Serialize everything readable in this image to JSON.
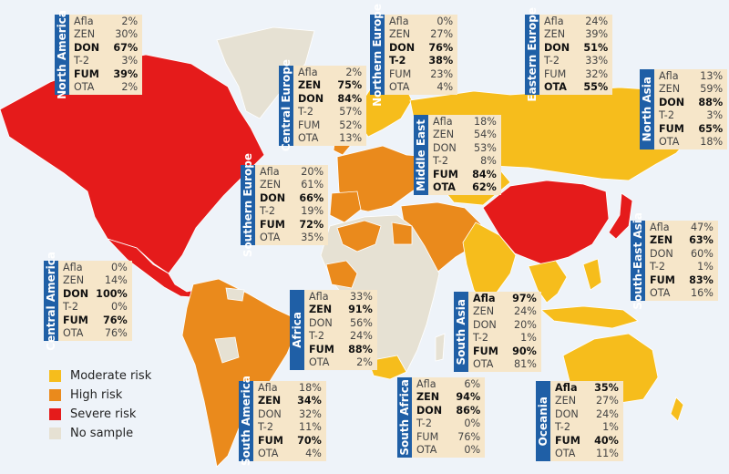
{
  "colors": {
    "moderate": "#f6bd1c",
    "high": "#ea8a1c",
    "severe": "#e51b1b",
    "no_sample": "#e6e1d3",
    "ocean": "#eef3f9",
    "box_bg": "#f6e6c9",
    "tag_bg": "#1f5fa6"
  },
  "legend": [
    {
      "label": "Moderate risk",
      "color_key": "moderate"
    },
    {
      "label": "High risk",
      "color_key": "high"
    },
    {
      "label": "Severe risk",
      "color_key": "severe"
    },
    {
      "label": "No sample",
      "color_key": "no_sample"
    }
  ],
  "regions": [
    {
      "name": "North America",
      "rows": [
        {
          "label": "Afla",
          "value": "2%",
          "bold": false
        },
        {
          "label": "ZEN",
          "value": "30%",
          "bold": false
        },
        {
          "label": "DON",
          "value": "67%",
          "bold": true
        },
        {
          "label": "T-2",
          "value": "3%",
          "bold": false
        },
        {
          "label": "FUM",
          "value": "39%",
          "bold": true
        },
        {
          "label": "OTA",
          "value": "2%",
          "bold": false
        }
      ]
    },
    {
      "name": "Northern Europe",
      "rows": [
        {
          "label": "Afla",
          "value": "0%",
          "bold": false
        },
        {
          "label": "ZEN",
          "value": "27%",
          "bold": false
        },
        {
          "label": "DON",
          "value": "76%",
          "bold": true
        },
        {
          "label": "T-2",
          "value": "38%",
          "bold": true
        },
        {
          "label": "FUM",
          "value": "23%",
          "bold": false
        },
        {
          "label": "OTA",
          "value": "4%",
          "bold": false
        }
      ]
    },
    {
      "name": "Eastern Europe",
      "rows": [
        {
          "label": "Afla",
          "value": "24%",
          "bold": false
        },
        {
          "label": "ZEN",
          "value": "39%",
          "bold": false
        },
        {
          "label": "DON",
          "value": "51%",
          "bold": true
        },
        {
          "label": "T-2",
          "value": "33%",
          "bold": false
        },
        {
          "label": "FUM",
          "value": "32%",
          "bold": false
        },
        {
          "label": "OTA",
          "value": "55%",
          "bold": true
        }
      ]
    },
    {
      "name": "Central Europe",
      "rows": [
        {
          "label": "Afla",
          "value": "2%",
          "bold": false
        },
        {
          "label": "ZEN",
          "value": "75%",
          "bold": true
        },
        {
          "label": "DON",
          "value": "84%",
          "bold": true
        },
        {
          "label": "T-2",
          "value": "57%",
          "bold": false
        },
        {
          "label": "FUM",
          "value": "52%",
          "bold": false
        },
        {
          "label": "OTA",
          "value": "13%",
          "bold": false
        }
      ]
    },
    {
      "name": "Middle East",
      "rows": [
        {
          "label": "Afla",
          "value": "18%",
          "bold": false
        },
        {
          "label": "ZEN",
          "value": "54%",
          "bold": false
        },
        {
          "label": "DON",
          "value": "53%",
          "bold": false
        },
        {
          "label": "T-2",
          "value": "8%",
          "bold": false
        },
        {
          "label": "FUM",
          "value": "84%",
          "bold": true
        },
        {
          "label": "OTA",
          "value": "62%",
          "bold": true
        }
      ]
    },
    {
      "name": "North Asia",
      "rows": [
        {
          "label": "Afla",
          "value": "13%",
          "bold": false
        },
        {
          "label": "ZEN",
          "value": "59%",
          "bold": false
        },
        {
          "label": "DON",
          "value": "88%",
          "bold": true
        },
        {
          "label": "T-2",
          "value": "3%",
          "bold": false
        },
        {
          "label": "FUM",
          "value": "65%",
          "bold": true
        },
        {
          "label": "OTA",
          "value": "18%",
          "bold": false
        }
      ]
    },
    {
      "name": "Southern Europe",
      "rows": [
        {
          "label": "Afla",
          "value": "20%",
          "bold": false
        },
        {
          "label": "ZEN",
          "value": "61%",
          "bold": false
        },
        {
          "label": "DON",
          "value": "66%",
          "bold": true
        },
        {
          "label": "T-2",
          "value": "19%",
          "bold": false
        },
        {
          "label": "FUM",
          "value": "72%",
          "bold": true
        },
        {
          "label": "OTA",
          "value": "35%",
          "bold": false
        }
      ]
    },
    {
      "name": "South-East Asia",
      "rows": [
        {
          "label": "Afla",
          "value": "47%",
          "bold": false
        },
        {
          "label": "ZEN",
          "value": "63%",
          "bold": true
        },
        {
          "label": "DON",
          "value": "60%",
          "bold": false
        },
        {
          "label": "T-2",
          "value": "1%",
          "bold": false
        },
        {
          "label": "FUM",
          "value": "83%",
          "bold": true
        },
        {
          "label": "OTA",
          "value": "16%",
          "bold": false
        }
      ]
    },
    {
      "name": "Central America",
      "rows": [
        {
          "label": "Afla",
          "value": "0%",
          "bold": false
        },
        {
          "label": "ZEN",
          "value": "14%",
          "bold": false
        },
        {
          "label": "DON",
          "value": "100%",
          "bold": true
        },
        {
          "label": "T-2",
          "value": "0%",
          "bold": false
        },
        {
          "label": "FUM",
          "value": "76%",
          "bold": true
        },
        {
          "label": "OTA",
          "value": "76%",
          "bold": false
        }
      ]
    },
    {
      "name": "Africa",
      "rows": [
        {
          "label": "Afla",
          "value": "33%",
          "bold": false
        },
        {
          "label": "ZEN",
          "value": "91%",
          "bold": true
        },
        {
          "label": "DON",
          "value": "56%",
          "bold": false
        },
        {
          "label": "T-2",
          "value": "24%",
          "bold": false
        },
        {
          "label": "FUM",
          "value": "88%",
          "bold": true
        },
        {
          "label": "OTA",
          "value": "2%",
          "bold": false
        }
      ]
    },
    {
      "name": "South Asia",
      "rows": [
        {
          "label": "Afla",
          "value": "97%",
          "bold": true
        },
        {
          "label": "ZEN",
          "value": "24%",
          "bold": false
        },
        {
          "label": "DON",
          "value": "20%",
          "bold": false
        },
        {
          "label": "T-2",
          "value": "1%",
          "bold": false
        },
        {
          "label": "FUM",
          "value": "90%",
          "bold": true
        },
        {
          "label": "OTA",
          "value": "81%",
          "bold": false
        }
      ]
    },
    {
      "name": "South America",
      "rows": [
        {
          "label": "Afla",
          "value": "18%",
          "bold": false
        },
        {
          "label": "ZEN",
          "value": "34%",
          "bold": true
        },
        {
          "label": "DON",
          "value": "32%",
          "bold": false
        },
        {
          "label": "T-2",
          "value": "11%",
          "bold": false
        },
        {
          "label": "FUM",
          "value": "70%",
          "bold": true
        },
        {
          "label": "OTA",
          "value": "4%",
          "bold": false
        }
      ]
    },
    {
      "name": "South Africa",
      "rows": [
        {
          "label": "Afla",
          "value": "6%",
          "bold": false
        },
        {
          "label": "ZEN",
          "value": "94%",
          "bold": true
        },
        {
          "label": "DON",
          "value": "86%",
          "bold": true
        },
        {
          "label": "T-2",
          "value": "0%",
          "bold": false
        },
        {
          "label": "FUM",
          "value": "76%",
          "bold": false
        },
        {
          "label": "OTA",
          "value": "0%",
          "bold": false
        }
      ]
    },
    {
      "name": "Oceania",
      "rows": [
        {
          "label": "Afla",
          "value": "35%",
          "bold": true
        },
        {
          "label": "ZEN",
          "value": "27%",
          "bold": false
        },
        {
          "label": "DON",
          "value": "24%",
          "bold": false
        },
        {
          "label": "T-2",
          "value": "1%",
          "bold": false
        },
        {
          "label": "FUM",
          "value": "40%",
          "bold": true
        },
        {
          "label": "OTA",
          "value": "11%",
          "bold": false
        }
      ]
    }
  ]
}
